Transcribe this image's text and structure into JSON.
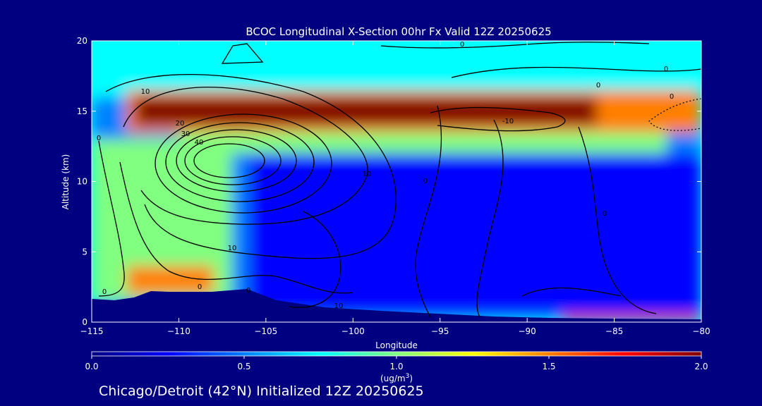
{
  "chart_data": {
    "type": "heatmap",
    "title": "BCOC Longitudinal X-Section 00hr  Fx Valid 12Z 20250625",
    "xlabel": "Longitude",
    "ylabel": "Altitude (km)",
    "xlim": [
      -115,
      -80
    ],
    "ylim": [
      0,
      20
    ],
    "x_ticks": [
      -115,
      -110,
      -105,
      -100,
      -95,
      -90,
      -85,
      -80
    ],
    "x_tick_labels": [
      "−115",
      "−110",
      "−105",
      "−100",
      "−95",
      "−90",
      "−85",
      "−80"
    ],
    "y_ticks": [
      0,
      5,
      10,
      15,
      20
    ],
    "y_tick_labels": [
      "0",
      "5",
      "10",
      "15",
      "20"
    ],
    "colorbar": {
      "min": 0.0,
      "max": 2.0,
      "ticks": [
        0.0,
        0.5,
        1.0,
        1.5,
        2.0
      ],
      "tick_labels": [
        "0.0",
        "0.5",
        "1.0",
        "1.5",
        "2.0"
      ],
      "units_text": "(ug/m",
      "units_sup": "3",
      "units_close": ")",
      "colors": [
        "#000080",
        "#0000ff",
        "#0080ff",
        "#00ffff",
        "#80ff80",
        "#ffff00",
        "#ff8000",
        "#ff0000",
        "#800000"
      ]
    },
    "contour_labels": [
      "0",
      "10",
      "20",
      "30",
      "40",
      "10",
      "10",
      "10",
      "0",
      "0",
      "0",
      "-10",
      "0",
      "0",
      "0",
      "0",
      "0",
      "0"
    ],
    "layers": [
      {
        "lon": [
          -115,
          -80
        ],
        "alt": [
          0.3,
          20.0
        ],
        "value": 0.55
      },
      {
        "lon": [
          -115,
          -80
        ],
        "alt": [
          16.0,
          20.0
        ],
        "value": 0.85
      },
      {
        "lon": [
          -113,
          -80
        ],
        "alt": [
          13.5,
          16.5
        ],
        "value": 1.5
      },
      {
        "lon": [
          -112.5,
          -86
        ],
        "alt": [
          14.0,
          16.0
        ],
        "value": 1.9
      },
      {
        "lon": [
          -110,
          -82
        ],
        "alt": [
          12.0,
          13.5
        ],
        "value": 1.0
      },
      {
        "lon": [
          -106,
          -80
        ],
        "alt": [
          0.6,
          12.0
        ],
        "value": 0.2
      },
      {
        "lon": [
          -115,
          -107
        ],
        "alt": [
          1.5,
          13.0
        ],
        "value": 0.9
      },
      {
        "lon": [
          -113,
          -108
        ],
        "alt": [
          2.0,
          4.0
        ],
        "value": 1.45
      },
      {
        "lon": [
          -88,
          -80
        ],
        "alt": [
          0.0,
          0.5
        ],
        "value": 1.8
      }
    ]
  },
  "footer": "Chicago/Detroit (42°N) Initialized 12Z 20250625"
}
